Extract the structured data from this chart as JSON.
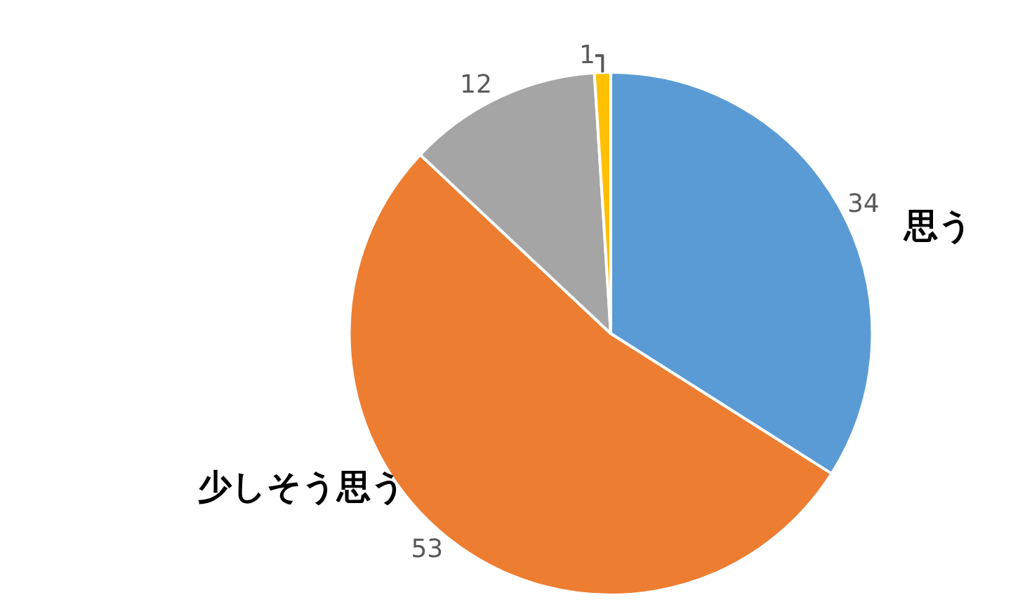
{
  "chart_data": {
    "type": "pie",
    "categories": [
      "思う",
      "少しそう思う",
      null,
      null
    ],
    "values": [
      34,
      53,
      12,
      1
    ],
    "colors": [
      "#5b9bd5",
      "#ed7d31",
      "#a5a5a5",
      "#ffc000"
    ],
    "data_labels": true,
    "legend": false
  }
}
